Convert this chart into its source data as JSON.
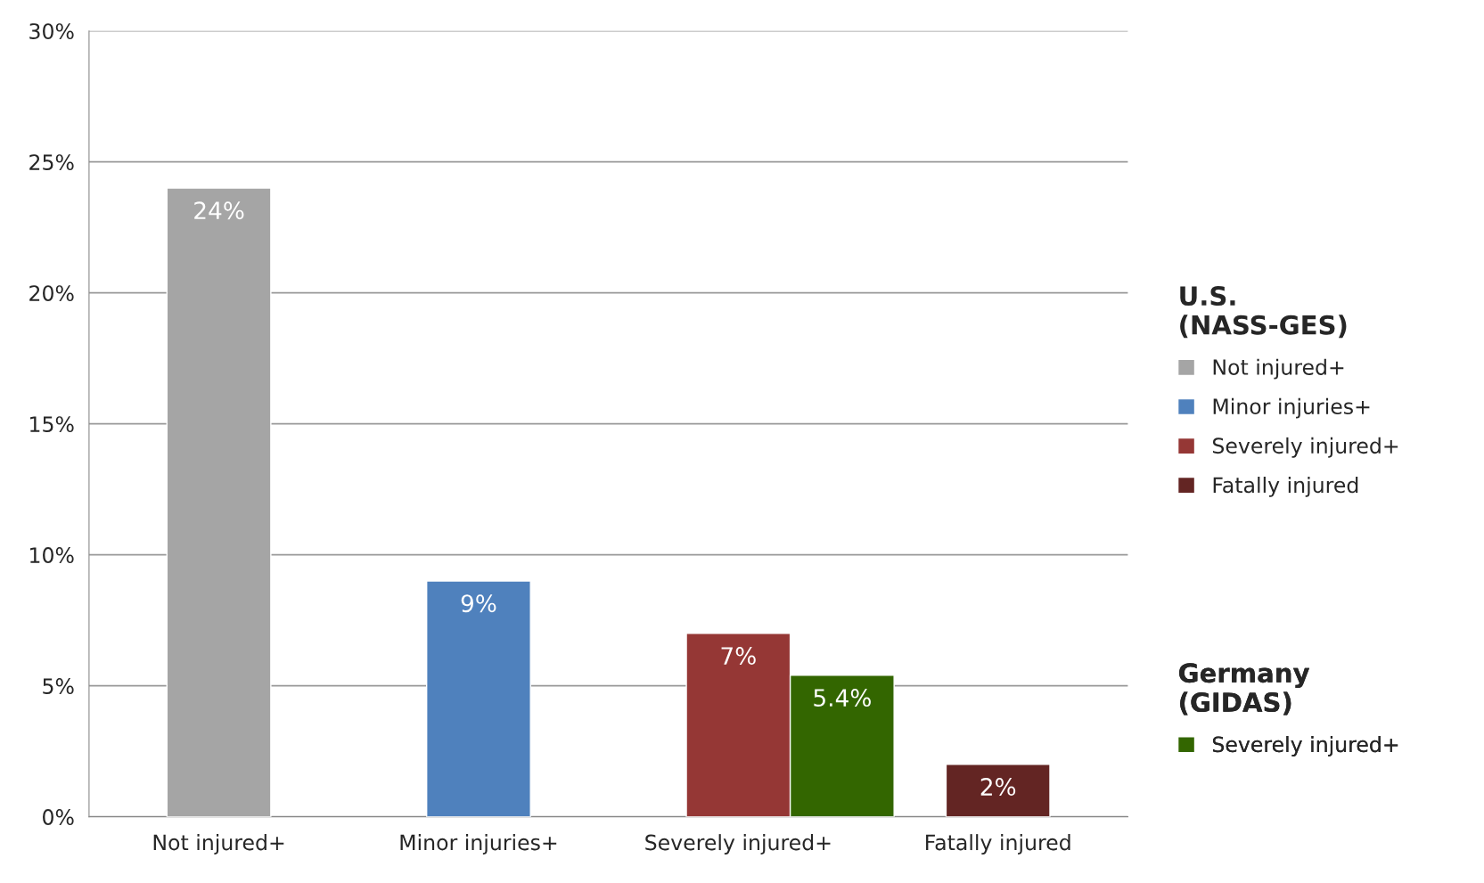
{
  "chart_data": {
    "type": "bar",
    "categories": [
      "Not injured+",
      "Minor injuries+",
      "Severely injured+",
      "Fatally injured"
    ],
    "series": [
      {
        "name": "Not injured+",
        "color": "#a5a5a5",
        "values": [
          24,
          null,
          null,
          null
        ],
        "value_labels": [
          "24%",
          null,
          null,
          null
        ]
      },
      {
        "name": "Minor injuries+",
        "color": "#4f81bd",
        "values": [
          null,
          9,
          null,
          null
        ],
        "value_labels": [
          null,
          "9%",
          null,
          null
        ]
      },
      {
        "name": "Severely injured+",
        "color": "#953735",
        "values": [
          null,
          null,
          7,
          null
        ],
        "value_labels": [
          null,
          null,
          "7%",
          null
        ]
      },
      {
        "name": "Fatally injured",
        "color": "#632523",
        "values": [
          null,
          null,
          null,
          2
        ],
        "value_labels": [
          null,
          null,
          null,
          "2%"
        ]
      },
      {
        "name": "Severely injured+",
        "color": "#336600",
        "values": [
          null,
          null,
          5.4,
          null
        ],
        "value_labels": [
          null,
          null,
          "5.4%",
          null
        ]
      }
    ],
    "annotations": [
      "U.S.\n(NASS-GES)",
      "Germany\n(GIDAS)"
    ],
    "ylim": [
      0,
      30
    ],
    "yticks": [
      {
        "value": 0,
        "label": "0%"
      },
      {
        "value": 5,
        "label": "5%"
      },
      {
        "value": 10,
        "label": "10%"
      },
      {
        "value": 15,
        "label": "15%"
      },
      {
        "value": 20,
        "label": "20%"
      },
      {
        "value": 25,
        "label": "25%"
      },
      {
        "value": 30,
        "label": "30%"
      }
    ],
    "grid": "y",
    "legend": "right"
  }
}
